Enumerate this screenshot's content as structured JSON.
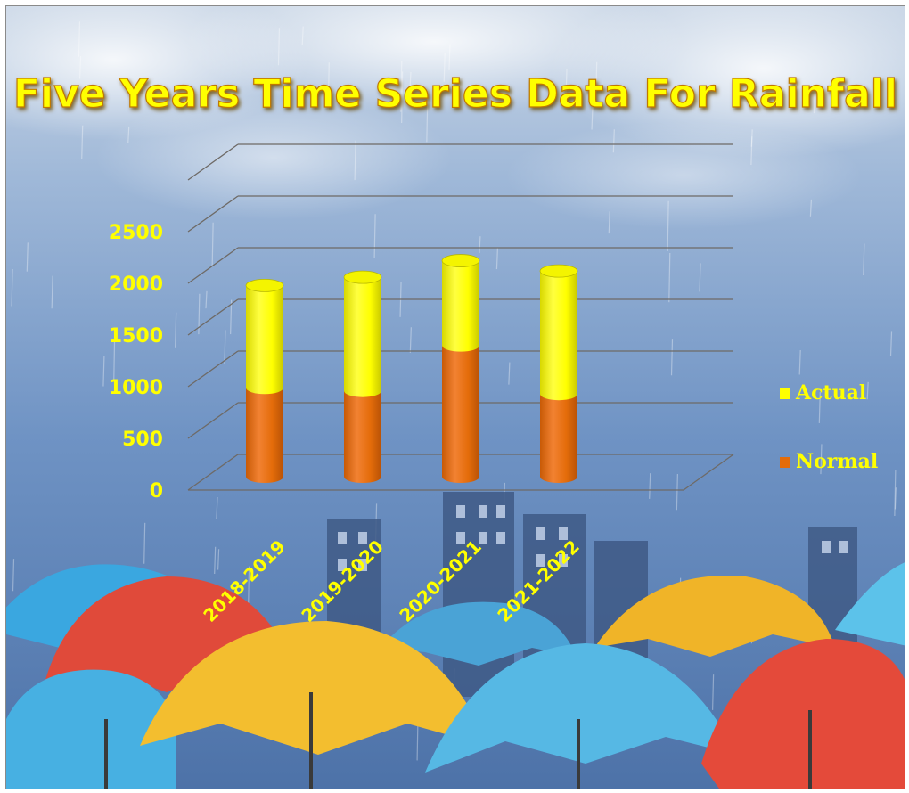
{
  "chart_data": {
    "type": "bar",
    "stacked": true,
    "style": "3d-cylinder",
    "title": "Five Years Time Series Data For Rainfall",
    "categories": [
      "2018-2019",
      "2019-2020",
      "2020-2021",
      "2021-2022"
    ],
    "series": [
      {
        "name": "Normal",
        "values": [
          860,
          830,
          1270,
          800
        ],
        "color": "#e46c0a"
      },
      {
        "name": "Actual",
        "values": [
          990,
          1100,
          820,
          1190
        ],
        "color": "#ffff00"
      }
    ],
    "y_ticks": [
      "0",
      "500",
      "1000",
      "1500",
      "2000",
      "2500"
    ],
    "ylim": [
      0,
      2500
    ],
    "grid": true,
    "legend_position": "right",
    "colors": {
      "title": "#ffff00",
      "axis_labels": "#ffff00",
      "legend_text": "#ffff00",
      "gridline": "#6e6a66"
    }
  }
}
